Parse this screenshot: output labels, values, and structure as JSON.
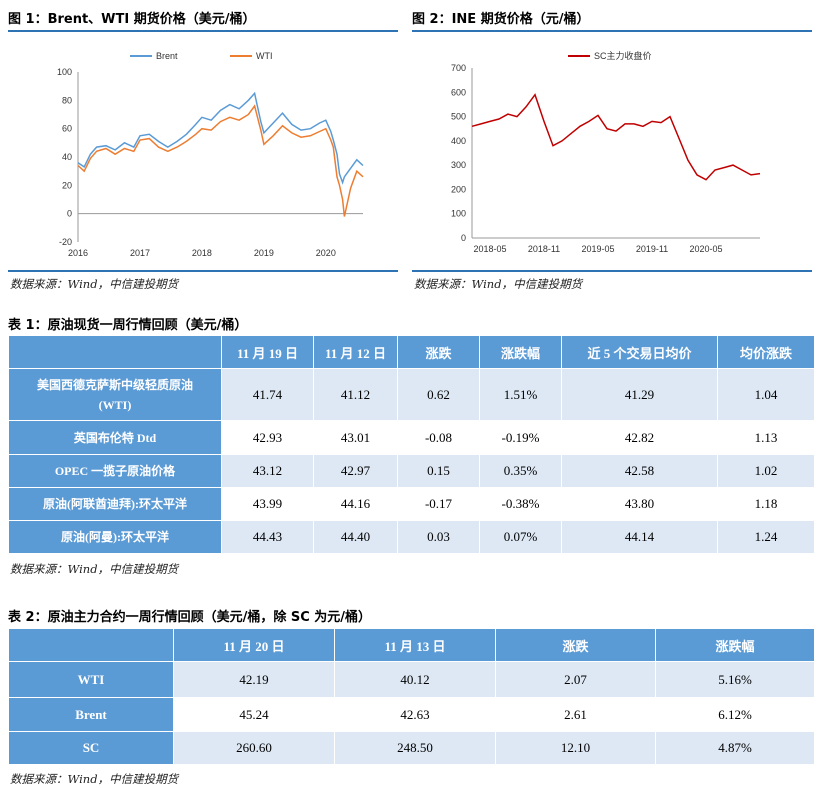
{
  "figure1": {
    "title": "图 1：Brent、WTI 期货价格（美元/桶）",
    "legend": [
      "Brent",
      "WTI"
    ],
    "source": "数据来源：Wind，中信建投期货"
  },
  "figure2": {
    "title": "图 2：INE 期货价格（元/桶）",
    "legend": [
      "SC主力收盘价"
    ],
    "source": "数据来源：Wind，中信建投期货"
  },
  "chart_data": [
    {
      "type": "line",
      "title": "",
      "xlabel": "",
      "ylabel": "",
      "x_ticks": [
        "2016",
        "2017",
        "2018",
        "2019",
        "2020"
      ],
      "ylim": [
        -20,
        100
      ],
      "y_ticks": [
        -20,
        0,
        20,
        40,
        60,
        80,
        100
      ],
      "legend_position": "top-center",
      "colors": {
        "Brent": "#5b9bd5",
        "WTI": "#ed7d31"
      },
      "x": [
        2016.0,
        2016.1,
        2016.2,
        2016.3,
        2016.45,
        2016.6,
        2016.75,
        2016.9,
        2017.0,
        2017.15,
        2017.3,
        2017.45,
        2017.6,
        2017.75,
        2017.9,
        2018.0,
        2018.15,
        2018.3,
        2018.45,
        2018.6,
        2018.75,
        2018.85,
        2018.95,
        2019.0,
        2019.15,
        2019.3,
        2019.45,
        2019.6,
        2019.75,
        2019.9,
        2020.0,
        2020.08,
        2020.12,
        2020.18,
        2020.22,
        2020.27,
        2020.3,
        2020.4,
        2020.5,
        2020.6
      ],
      "series": [
        {
          "name": "Brent",
          "values": [
            36,
            33,
            42,
            47,
            48,
            45,
            50,
            47,
            55,
            56,
            51,
            47,
            51,
            56,
            63,
            68,
            66,
            73,
            77,
            74,
            80,
            85,
            65,
            57,
            64,
            71,
            63,
            59,
            60,
            64,
            66,
            58,
            52,
            42,
            28,
            22,
            26,
            32,
            38,
            34
          ]
        },
        {
          "name": "WTI",
          "values": [
            34,
            30,
            39,
            44,
            46,
            42,
            46,
            44,
            52,
            53,
            47,
            44,
            47,
            51,
            56,
            60,
            59,
            65,
            68,
            66,
            70,
            76,
            59,
            49,
            55,
            62,
            57,
            54,
            55,
            58,
            60,
            52,
            47,
            26,
            20,
            10,
            -2,
            18,
            30,
            26
          ]
        }
      ]
    },
    {
      "type": "line",
      "title": "",
      "xlabel": "",
      "ylabel": "",
      "x_ticks": [
        "2018-05",
        "2018-11",
        "2019-05",
        "2019-11",
        "2020-05"
      ],
      "ylim": [
        0,
        700
      ],
      "y_ticks": [
        0,
        100,
        200,
        300,
        400,
        500,
        600,
        700
      ],
      "legend_position": "top-center",
      "colors": {
        "SC主力收盘价": "#c00000"
      },
      "x": [
        "2018-03",
        "2018-04",
        "2018-05",
        "2018-06",
        "2018-07",
        "2018-08",
        "2018-09",
        "2018-10",
        "2018-11",
        "2018-12",
        "2019-01",
        "2019-02",
        "2019-03",
        "2019-04",
        "2019-05",
        "2019-06",
        "2019-07",
        "2019-08",
        "2019-09",
        "2019-10",
        "2019-11",
        "2019-12",
        "2020-01",
        "2020-02",
        "2020-03",
        "2020-04",
        "2020-05",
        "2020-06",
        "2020-07",
        "2020-08",
        "2020-09",
        "2020-10",
        "2020-11"
      ],
      "series": [
        {
          "name": "SC主力收盘价",
          "values": [
            460,
            470,
            480,
            490,
            510,
            500,
            540,
            590,
            480,
            380,
            400,
            430,
            460,
            480,
            505,
            450,
            440,
            470,
            470,
            460,
            480,
            475,
            500,
            410,
            320,
            260,
            240,
            280,
            290,
            300,
            280,
            260,
            265
          ]
        }
      ]
    }
  ],
  "table1": {
    "title": "表 1：原油现货一周行情回顾（美元/桶）",
    "headers": [
      "",
      "11 月 19 日",
      "11 月 12 日",
      "涨跌",
      "涨跌幅",
      "近 5 个交易日均价",
      "均价涨跌"
    ],
    "rows": [
      {
        "name_line1": "美国西德克萨斯中级轻质原油",
        "name_line2": "(WTI)",
        "values": [
          "41.74",
          "41.12",
          "0.62",
          "1.51%",
          "41.29",
          "1.04"
        ]
      },
      {
        "name_line1": "英国布伦特 Dtd",
        "name_line2": "",
        "values": [
          "42.93",
          "43.01",
          "-0.08",
          "-0.19%",
          "42.82",
          "1.13"
        ]
      },
      {
        "name_line1": "OPEC 一揽子原油价格",
        "name_line2": "",
        "values": [
          "43.12",
          "42.97",
          "0.15",
          "0.35%",
          "42.58",
          "1.02"
        ]
      },
      {
        "name_line1": "原油(阿联酋迪拜):环太平洋",
        "name_line2": "",
        "values": [
          "43.99",
          "44.16",
          "-0.17",
          "-0.38%",
          "43.80",
          "1.18"
        ]
      },
      {
        "name_line1": "原油(阿曼):环太平洋",
        "name_line2": "",
        "values": [
          "44.43",
          "44.40",
          "0.03",
          "0.07%",
          "44.14",
          "1.24"
        ]
      }
    ],
    "source": "数据来源：Wind，中信建投期货"
  },
  "table2": {
    "title": "表 2：原油主力合约一周行情回顾（美元/桶，除 SC 为元/桶）",
    "headers": [
      "",
      "11 月 20 日",
      "11 月 13 日",
      "涨跌",
      "涨跌幅"
    ],
    "rows": [
      {
        "name": "WTI",
        "values": [
          "42.19",
          "40.12",
          "2.07",
          "5.16%"
        ]
      },
      {
        "name": "Brent",
        "values": [
          "45.24",
          "42.63",
          "2.61",
          "6.12%"
        ]
      },
      {
        "name": "SC",
        "values": [
          "260.60",
          "248.50",
          "12.10",
          "4.87%"
        ]
      }
    ],
    "source": "数据来源：Wind，中信建投期货"
  }
}
